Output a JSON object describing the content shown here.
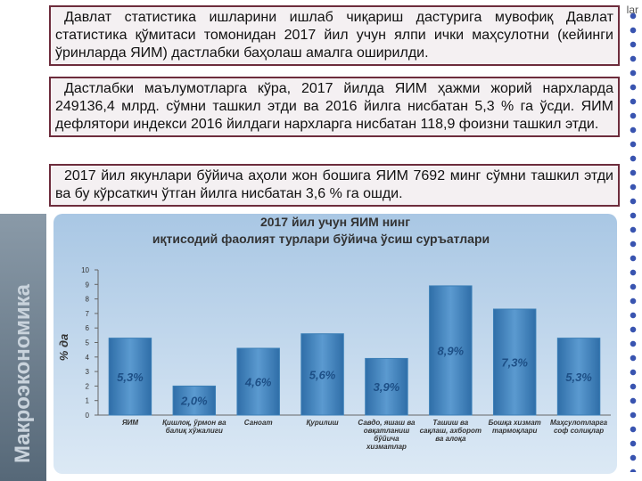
{
  "corner_text": "lar",
  "side_label": "Макроэкономика",
  "paragraphs": [
    "Давлат статистика ишларини ишлаб чиқариш дастурига мувофиқ Давлат статистика қўмитаси томонидан 2017 йил учун ялпи ички маҳсулотни (кейинги ўринларда ЯИМ) дастлабки баҳолаш амалга оширилди.",
    "Дастлабки маълумотларга кўра, 2017 йилда ЯИМ ҳажми жорий нархларда 249136,4 млрд. сўмни ташкил этди ва 2016 йилга нисбатан 5,3 % га ўсди. ЯИМ дефлятори индекси 2016 йилдаги нархларга нисбатан 118,9 фоизни ташкил этди.",
    "2017 йил якунлари бўйича аҳоли жон бошига ЯИМ 7692 минг сўмни ташкил этди ва бу кўрсаткич ўтган йилга нисбатан 3,6 % га ошди."
  ],
  "chart_data": {
    "type": "bar",
    "title": "2017 йил учун ЯИМ нинг",
    "subtitle": "иқтисодий фаолият турлари бўйича ўсиш суръатлари",
    "y_label": "% да",
    "categories": [
      "ЯИМ",
      "Қишлоқ, ўрмон ва балиқ хўжалиги",
      "Саноат",
      "Қурилиш",
      "Савдо, яшаш ва овқатланиш бўйича хизматлар",
      "Ташиш ва сақлаш, ахборот ва алоқа",
      "Бошқа хизмат тармоқлари",
      "Маҳсулотларга соф солиқлар"
    ],
    "values": [
      5.3,
      2.0,
      4.6,
      5.6,
      3.9,
      8.9,
      7.3,
      5.3
    ],
    "value_labels": [
      "5,3%",
      "2,0%",
      "4,6%",
      "5,6%",
      "3,9%",
      "8,9%",
      "7,3%",
      "5,3%"
    ],
    "color": "#3b7fb6",
    "ylim": [
      0,
      10
    ],
    "yticks": [
      0,
      1,
      2,
      3,
      4,
      5,
      6,
      7,
      8,
      9,
      10
    ]
  }
}
